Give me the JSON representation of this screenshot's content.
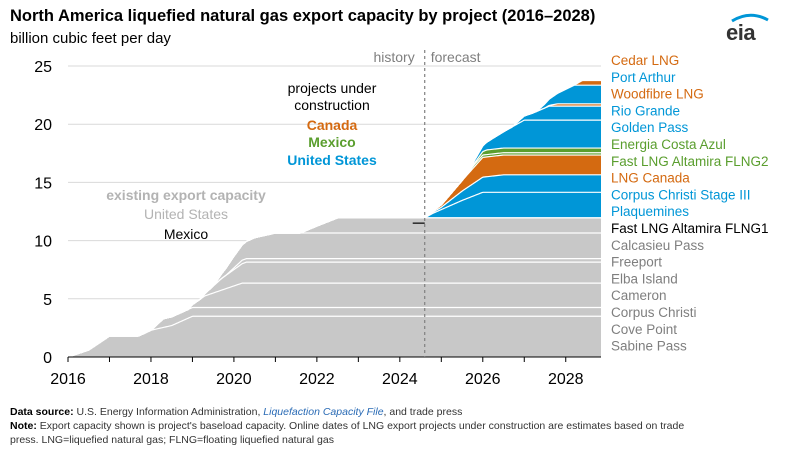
{
  "title": "North America liquefied natural gas export capacity by project (2016–2028)",
  "subtitle": "billion cubic feet per day",
  "logo": "eia",
  "chart_data": {
    "type": "area",
    "stacked": true,
    "xlim": [
      2016,
      2028.85
    ],
    "ylim": [
      0,
      25
    ],
    "x_ticks": [
      "2016",
      "2018",
      "2020",
      "2022",
      "2024",
      "2026",
      "2028"
    ],
    "y_ticks": [
      "0",
      "5",
      "10",
      "15",
      "20",
      "25"
    ],
    "grid": "horizontal",
    "history_label": "history",
    "forecast_label": "forecast",
    "forecast_start": 2024.6,
    "group_labels": {
      "under_construction": [
        "projects under",
        "construction"
      ],
      "canada": "Canada",
      "mexico": "Mexico",
      "united_states": "United States",
      "existing": "existing export capacity",
      "existing_us": "United States",
      "existing_mexico": "Mexico"
    },
    "colors": {
      "existing": "#c8c8c8",
      "united_states": "#0096d7",
      "canada": "#d46a11",
      "mexico": "#5a9e2e",
      "label_grey": "#b3b3b3"
    },
    "series": [
      {
        "name": "Sabine Pass",
        "group": "existing",
        "label_color": "#7f7f7f",
        "points": [
          [
            2016,
            0
          ],
          [
            2016.5,
            0.6
          ],
          [
            2017,
            1.8
          ],
          [
            2017.7,
            1.8
          ],
          [
            2018,
            2.3
          ],
          [
            2018.5,
            2.7
          ],
          [
            2019,
            3.5
          ],
          [
            2024.6,
            3.5
          ],
          [
            2028.85,
            3.5
          ]
        ]
      },
      {
        "name": "Cove Point",
        "group": "existing",
        "label_color": "#7f7f7f",
        "points": [
          [
            2016,
            0
          ],
          [
            2018,
            0
          ],
          [
            2018.3,
            0.75
          ],
          [
            2028.85,
            0.75
          ]
        ]
      },
      {
        "name": "Corpus Christi",
        "group": "existing",
        "label_color": "#7f7f7f",
        "points": [
          [
            2016,
            0
          ],
          [
            2018.9,
            0
          ],
          [
            2019.3,
            1.0
          ],
          [
            2020.2,
            2.1
          ],
          [
            2028.85,
            2.1
          ]
        ]
      },
      {
        "name": "Cameron",
        "group": "existing",
        "label_color": "#7f7f7f",
        "points": [
          [
            2016,
            0
          ],
          [
            2019.2,
            0
          ],
          [
            2019.7,
            1.0
          ],
          [
            2020.3,
            1.8
          ],
          [
            2028.85,
            1.8
          ]
        ]
      },
      {
        "name": "Elba Island",
        "group": "existing",
        "label_color": "#7f7f7f",
        "points": [
          [
            2016,
            0
          ],
          [
            2019.8,
            0
          ],
          [
            2020.2,
            0.3
          ],
          [
            2028.85,
            0.3
          ]
        ]
      },
      {
        "name": "Freeport",
        "group": "existing",
        "label_color": "#7f7f7f",
        "points": [
          [
            2016,
            0
          ],
          [
            2019.5,
            0
          ],
          [
            2020,
            1.0
          ],
          [
            2020.5,
            1.8
          ],
          [
            2021,
            2.2
          ],
          [
            2028.85,
            2.2
          ]
        ]
      },
      {
        "name": "Calcasieu Pass",
        "group": "existing",
        "label_color": "#7f7f7f",
        "points": [
          [
            2016,
            0
          ],
          [
            2021.6,
            0
          ],
          [
            2022,
            0.6
          ],
          [
            2022.5,
            1.3
          ],
          [
            2028.85,
            1.3
          ]
        ]
      },
      {
        "name": "Fast LNG Altamira FLNG1",
        "group": "existing",
        "label_color": "#000000",
        "points": [
          [
            2016,
            0
          ],
          [
            2024.6,
            0
          ],
          [
            2028.85,
            0
          ]
        ]
      },
      {
        "name": "Plaquemines",
        "group": "united_states",
        "label_color": "#0096d7",
        "points": [
          [
            2016,
            0
          ],
          [
            2024.6,
            0
          ],
          [
            2024.8,
            0.4
          ],
          [
            2025.5,
            1.5
          ],
          [
            2026,
            2.2
          ],
          [
            2028.85,
            2.2
          ]
        ]
      },
      {
        "name": "Corpus Christi Stage III",
        "group": "united_states",
        "label_color": "#0096d7",
        "points": [
          [
            2016,
            0
          ],
          [
            2024.6,
            0
          ],
          [
            2025,
            0.2
          ],
          [
            2025.5,
            0.8
          ],
          [
            2026,
            1.3
          ],
          [
            2026.5,
            1.5
          ],
          [
            2028.85,
            1.5
          ]
        ]
      },
      {
        "name": "LNG Canada",
        "group": "canada",
        "label_color": "#d46a11",
        "points": [
          [
            2016,
            0
          ],
          [
            2024.6,
            0
          ],
          [
            2025,
            0.2
          ],
          [
            2025.5,
            0.9
          ],
          [
            2026,
            1.7
          ],
          [
            2028.85,
            1.7
          ]
        ]
      },
      {
        "name": "Fast LNG Altamira FLNG2",
        "group": "mexico",
        "label_color": "#5a9e2e",
        "points": [
          [
            2016,
            0
          ],
          [
            2025.5,
            0
          ],
          [
            2025.8,
            0.2
          ],
          [
            2026,
            0.2
          ],
          [
            2028.85,
            0.2
          ]
        ]
      },
      {
        "name": "Energia Costa Azul",
        "group": "mexico",
        "label_color": "#5a9e2e",
        "points": [
          [
            2016,
            0
          ],
          [
            2025.7,
            0
          ],
          [
            2026.1,
            0.4
          ],
          [
            2028.85,
            0.4
          ]
        ]
      },
      {
        "name": "Golden Pass",
        "group": "united_states",
        "label_color": "#0096d7",
        "points": [
          [
            2016,
            0
          ],
          [
            2025.6,
            0
          ],
          [
            2026,
            0.5
          ],
          [
            2026.5,
            1.4
          ],
          [
            2027,
            2.4
          ],
          [
            2028.85,
            2.4
          ]
        ]
      },
      {
        "name": "Rio Grande",
        "group": "united_states",
        "label_color": "#0096d7",
        "points": [
          [
            2016,
            0
          ],
          [
            2026.7,
            0
          ],
          [
            2027.2,
            0.6
          ],
          [
            2027.6,
            1.2
          ],
          [
            2028.85,
            1.2
          ]
        ]
      },
      {
        "name": "Woodfibre LNG",
        "group": "canada",
        "label_color": "#d46a11",
        "points": [
          [
            2016,
            0
          ],
          [
            2027.5,
            0
          ],
          [
            2027.8,
            0.2
          ],
          [
            2028.85,
            0.2
          ]
        ]
      },
      {
        "name": "Port Arthur",
        "group": "united_states",
        "label_color": "#0096d7",
        "points": [
          [
            2016,
            0
          ],
          [
            2027.3,
            0
          ],
          [
            2027.8,
            0.9
          ],
          [
            2028.2,
            1.6
          ],
          [
            2028.85,
            1.6
          ]
        ]
      },
      {
        "name": "Cedar LNG",
        "group": "canada",
        "label_color": "#d46a11",
        "points": [
          [
            2016,
            0
          ],
          [
            2028.2,
            0
          ],
          [
            2028.4,
            0.4
          ],
          [
            2028.85,
            0.4
          ]
        ]
      }
    ]
  },
  "footer": {
    "source_label": "Data source:",
    "source_text_1": "U.S. Energy Information Administration,",
    "source_link": "Liquefaction Capacity File",
    "source_text_2": ", and trade press",
    "note_label": "Note:",
    "note_text_1": "Export capacity shown is project's baseload capacity. Online dates of LNG export projects under construction are estimates based on trade",
    "note_text_2": "press. LNG=liquefied natural gas; FLNG=floating liquefied natural gas"
  }
}
